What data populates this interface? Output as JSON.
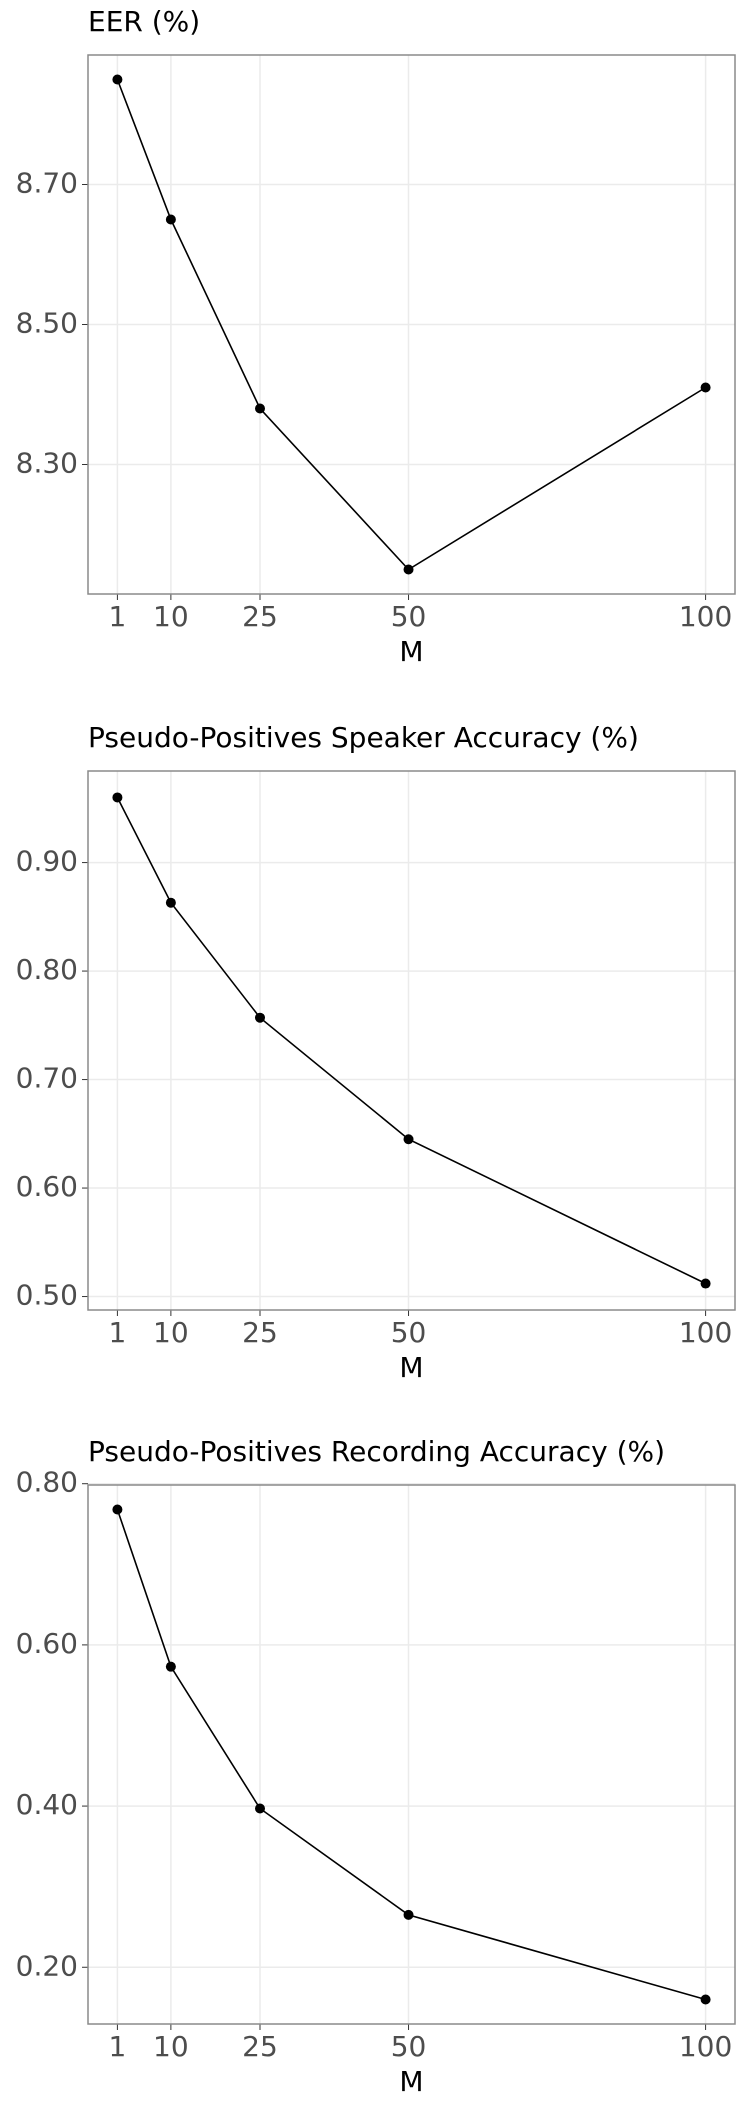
{
  "chart_data": [
    {
      "type": "line",
      "title": "EER (%)",
      "x_label": "M",
      "x": [
        1,
        10,
        25,
        50,
        100
      ],
      "values": [
        8.85,
        8.65,
        8.38,
        8.15,
        8.41
      ],
      "color": "#000000",
      "xlim": [
        -3.95,
        104.95
      ],
      "xticks": [
        1,
        10,
        25,
        50,
        100
      ],
      "ylim": [
        8.115,
        8.885
      ],
      "yticks": [
        {
          "value": 8.3,
          "label": "8.30"
        },
        {
          "value": 8.5,
          "label": "8.50"
        },
        {
          "value": 8.7,
          "label": "8.70"
        }
      ],
      "grid": true
    },
    {
      "type": "line",
      "title": "Pseudo-Positives Speaker Accuracy (%)",
      "x_label": "M",
      "x": [
        1,
        10,
        25,
        50,
        100
      ],
      "values": [
        0.96,
        0.863,
        0.757,
        0.645,
        0.512
      ],
      "color": "#000000",
      "xlim": [
        -3.95,
        104.95
      ],
      "xticks": [
        1,
        10,
        25,
        50,
        100
      ],
      "ylim": [
        0.4876,
        0.9844
      ],
      "yticks": [
        {
          "value": 0.5,
          "label": "0.50"
        },
        {
          "value": 0.6,
          "label": "0.60"
        },
        {
          "value": 0.7,
          "label": "0.70"
        },
        {
          "value": 0.8,
          "label": "0.80"
        },
        {
          "value": 0.9,
          "label": "0.90"
        }
      ],
      "grid": true
    },
    {
      "type": "line",
      "title": "Pseudo-Positives Recording Accuracy (%)",
      "x_label": "M",
      "x": [
        1,
        10,
        25,
        50,
        100
      ],
      "values": [
        0.768,
        0.573,
        0.397,
        0.265,
        0.16
      ],
      "color": "#000000",
      "xlim": [
        -3.95,
        104.95
      ],
      "xticks": [
        1,
        10,
        25,
        50,
        100
      ],
      "ylim": [
        0.1296,
        0.7984
      ],
      "yticks": [
        {
          "value": 0.2,
          "label": "0.20"
        },
        {
          "value": 0.4,
          "label": "0.40"
        },
        {
          "value": 0.6,
          "label": "0.60"
        },
        {
          "value": 0.8,
          "label": "0.80"
        }
      ],
      "grid": true
    }
  ]
}
